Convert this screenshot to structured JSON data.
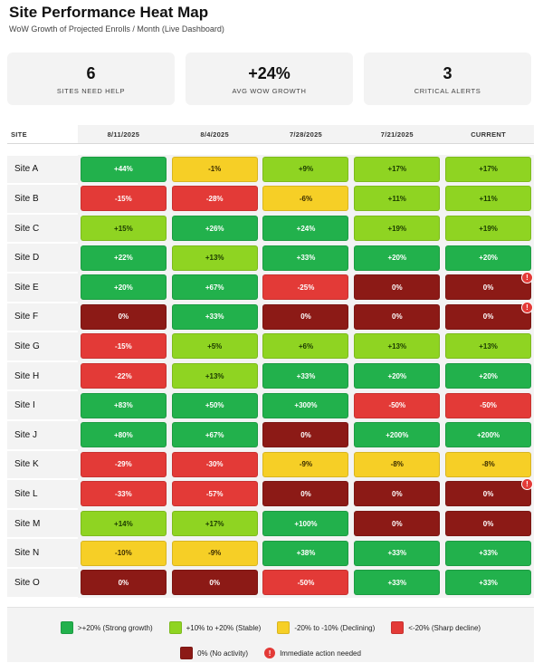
{
  "header": {
    "title": "Site Performance Heat Map",
    "subtitle": "WoW Growth of Projected Enrolls / Month (Live Dashboard)"
  },
  "summary": [
    {
      "value": "6",
      "label": "SITES NEED HELP"
    },
    {
      "value": "+24%",
      "label": "AVG WOW GROWTH"
    },
    {
      "value": "3",
      "label": "CRITICAL ALERTS"
    }
  ],
  "table": {
    "site_header": "SITE",
    "columns": [
      "8/11/2025",
      "8/4/2025",
      "7/28/2025",
      "7/21/2025",
      "CURRENT"
    ],
    "rows": [
      {
        "site": "Site A",
        "cells": [
          {
            "v": "+44%",
            "c": "g"
          },
          {
            "v": "-1%",
            "c": "y"
          },
          {
            "v": "+9%",
            "c": "lg"
          },
          {
            "v": "+17%",
            "c": "lg"
          },
          {
            "v": "+17%",
            "c": "lg"
          }
        ],
        "alert": false
      },
      {
        "site": "Site B",
        "cells": [
          {
            "v": "-15%",
            "c": "r"
          },
          {
            "v": "-28%",
            "c": "r"
          },
          {
            "v": "-6%",
            "c": "y"
          },
          {
            "v": "+11%",
            "c": "lg"
          },
          {
            "v": "+11%",
            "c": "lg"
          }
        ],
        "alert": false
      },
      {
        "site": "Site C",
        "cells": [
          {
            "v": "+15%",
            "c": "lg"
          },
          {
            "v": "+26%",
            "c": "g"
          },
          {
            "v": "+24%",
            "c": "g"
          },
          {
            "v": "+19%",
            "c": "lg"
          },
          {
            "v": "+19%",
            "c": "lg"
          }
        ],
        "alert": false
      },
      {
        "site": "Site D",
        "cells": [
          {
            "v": "+22%",
            "c": "g"
          },
          {
            "v": "+13%",
            "c": "lg"
          },
          {
            "v": "+33%",
            "c": "g"
          },
          {
            "v": "+20%",
            "c": "g"
          },
          {
            "v": "+20%",
            "c": "g"
          }
        ],
        "alert": false
      },
      {
        "site": "Site E",
        "cells": [
          {
            "v": "+20%",
            "c": "g"
          },
          {
            "v": "+67%",
            "c": "g"
          },
          {
            "v": "-25%",
            "c": "r"
          },
          {
            "v": "0%",
            "c": "dr"
          },
          {
            "v": "0%",
            "c": "dr"
          }
        ],
        "alert": true
      },
      {
        "site": "Site F",
        "cells": [
          {
            "v": "0%",
            "c": "dr"
          },
          {
            "v": "+33%",
            "c": "g"
          },
          {
            "v": "0%",
            "c": "dr"
          },
          {
            "v": "0%",
            "c": "dr"
          },
          {
            "v": "0%",
            "c": "dr"
          }
        ],
        "alert": true
      },
      {
        "site": "Site G",
        "cells": [
          {
            "v": "-15%",
            "c": "r"
          },
          {
            "v": "+5%",
            "c": "lg"
          },
          {
            "v": "+6%",
            "c": "lg"
          },
          {
            "v": "+13%",
            "c": "lg"
          },
          {
            "v": "+13%",
            "c": "lg"
          }
        ],
        "alert": false
      },
      {
        "site": "Site H",
        "cells": [
          {
            "v": "-22%",
            "c": "r"
          },
          {
            "v": "+13%",
            "c": "lg"
          },
          {
            "v": "+33%",
            "c": "g"
          },
          {
            "v": "+20%",
            "c": "g"
          },
          {
            "v": "+20%",
            "c": "g"
          }
        ],
        "alert": false
      },
      {
        "site": "Site I",
        "cells": [
          {
            "v": "+83%",
            "c": "g"
          },
          {
            "v": "+50%",
            "c": "g"
          },
          {
            "v": "+300%",
            "c": "g"
          },
          {
            "v": "-50%",
            "c": "r"
          },
          {
            "v": "-50%",
            "c": "r"
          }
        ],
        "alert": false
      },
      {
        "site": "Site J",
        "cells": [
          {
            "v": "+80%",
            "c": "g"
          },
          {
            "v": "+67%",
            "c": "g"
          },
          {
            "v": "0%",
            "c": "dr"
          },
          {
            "v": "+200%",
            "c": "g"
          },
          {
            "v": "+200%",
            "c": "g"
          }
        ],
        "alert": false
      },
      {
        "site": "Site K",
        "cells": [
          {
            "v": "-29%",
            "c": "r"
          },
          {
            "v": "-30%",
            "c": "r"
          },
          {
            "v": "-9%",
            "c": "y"
          },
          {
            "v": "-8%",
            "c": "y"
          },
          {
            "v": "-8%",
            "c": "y"
          }
        ],
        "alert": false
      },
      {
        "site": "Site L",
        "cells": [
          {
            "v": "-33%",
            "c": "r"
          },
          {
            "v": "-57%",
            "c": "r"
          },
          {
            "v": "0%",
            "c": "dr"
          },
          {
            "v": "0%",
            "c": "dr"
          },
          {
            "v": "0%",
            "c": "dr"
          }
        ],
        "alert": true
      },
      {
        "site": "Site M",
        "cells": [
          {
            "v": "+14%",
            "c": "lg"
          },
          {
            "v": "+17%",
            "c": "lg"
          },
          {
            "v": "+100%",
            "c": "g"
          },
          {
            "v": "0%",
            "c": "dr"
          },
          {
            "v": "0%",
            "c": "dr"
          }
        ],
        "alert": false
      },
      {
        "site": "Site N",
        "cells": [
          {
            "v": "-10%",
            "c": "y"
          },
          {
            "v": "-9%",
            "c": "y"
          },
          {
            "v": "+38%",
            "c": "g"
          },
          {
            "v": "+33%",
            "c": "g"
          },
          {
            "v": "+33%",
            "c": "g"
          }
        ],
        "alert": false
      },
      {
        "site": "Site O",
        "cells": [
          {
            "v": "0%",
            "c": "dr"
          },
          {
            "v": "0%",
            "c": "dr"
          },
          {
            "v": "-50%",
            "c": "r"
          },
          {
            "v": "+33%",
            "c": "g"
          },
          {
            "v": "+33%",
            "c": "g"
          }
        ],
        "alert": false
      }
    ],
    "alert_glyph": "!"
  },
  "legend": {
    "row1": [
      {
        "c": "g",
        "label": ">+20% (Strong growth)"
      },
      {
        "c": "lg",
        "label": "+10% to +20% (Stable)"
      },
      {
        "c": "y",
        "label": "-20% to -10% (Declining)"
      },
      {
        "c": "r",
        "label": "<-20% (Sharp decline)"
      }
    ],
    "row2": [
      {
        "c": "dr",
        "label": "0% (No activity)"
      }
    ],
    "alert_label": "Immediate action needed"
  },
  "colors": {
    "strong_growth": "#22b14c",
    "stable": "#8fd422",
    "declining": "#f6cf26",
    "sharp_decline": "#e33a37",
    "no_activity": "#8c1a16",
    "alert": "#e33a37"
  }
}
